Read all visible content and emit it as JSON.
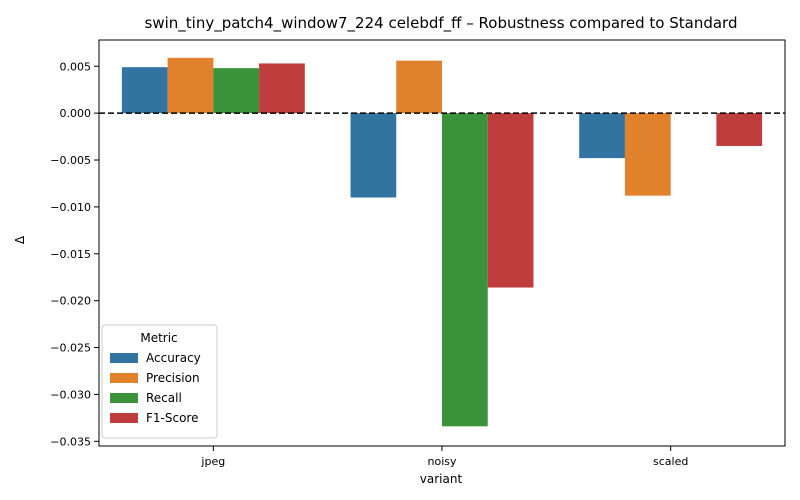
{
  "chart_data": {
    "type": "bar",
    "title": "swin_tiny_patch4_window7_224 celebdf_ff – Robustness compared to Standard",
    "xlabel": "variant",
    "ylabel": "Δ",
    "categories": [
      "jpeg",
      "noisy",
      "scaled"
    ],
    "ylim": [
      -0.0355,
      0.0078
    ],
    "yticks": [
      0.005,
      0.0,
      -0.005,
      -0.01,
      -0.015,
      -0.02,
      -0.025,
      -0.03,
      -0.035
    ],
    "ytick_labels": [
      "0.005",
      "0.000",
      "−0.005",
      "−0.010",
      "−0.015",
      "−0.020",
      "−0.025",
      "−0.030",
      "−0.035"
    ],
    "reference_line": 0,
    "grid": false,
    "legend": {
      "title": "Metric",
      "placement": "lower-left"
    },
    "series": [
      {
        "name": "Accuracy",
        "color": "#3274a1",
        "values": [
          0.0049,
          -0.009,
          -0.0048
        ]
      },
      {
        "name": "Precision",
        "color": "#e1812c",
        "values": [
          0.0059,
          0.0056,
          -0.0088
        ]
      },
      {
        "name": "Recall",
        "color": "#3a923a",
        "values": [
          0.0048,
          -0.0334,
          0.0
        ]
      },
      {
        "name": "F1-Score",
        "color": "#c03d3e",
        "values": [
          0.0053,
          -0.0186,
          -0.0035
        ]
      }
    ]
  }
}
